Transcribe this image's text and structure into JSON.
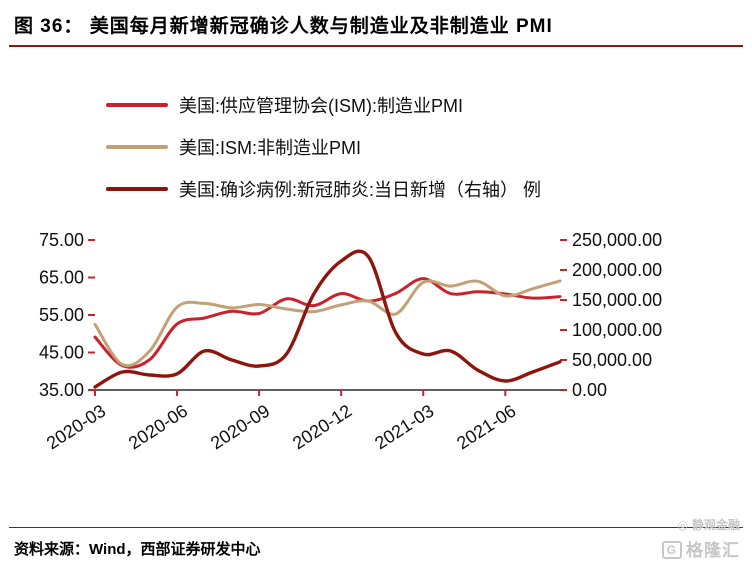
{
  "figure": {
    "title": "图 36：  美国每月新增新冠确诊人数与制造业及非制造业 PMI"
  },
  "chart_data": {
    "type": "line",
    "x": [
      "2020-03",
      "2020-04",
      "2020-05",
      "2020-06",
      "2020-07",
      "2020-08",
      "2020-09",
      "2020-10",
      "2020-11",
      "2020-12",
      "2021-01",
      "2021-02",
      "2021-03",
      "2021-04",
      "2021-05",
      "2021-06",
      "2021-07",
      "2021-08"
    ],
    "x_tick_labels": [
      "2020-03",
      "2020-06",
      "2020-09",
      "2020-12",
      "2021-03",
      "2021-06"
    ],
    "left_axis": {
      "min": 35,
      "max": 75,
      "tick_labels": [
        "75.00",
        "65.00",
        "55.00",
        "45.00",
        "35.00"
      ]
    },
    "right_axis": {
      "min": 0,
      "max": 250000,
      "tick_labels": [
        "250,000.00",
        "200,000.00",
        "150,000.00",
        "100,000.00",
        "50,000.00",
        "0.00"
      ]
    },
    "axis_tick_color": "#c0272d",
    "axis_line_color": "#000000",
    "grid": false,
    "legend_position": "top-left",
    "series": [
      {
        "name": "美国:供应管理协会(ISM):制造业PMI",
        "axis": "left",
        "color": "#c8232c",
        "values": [
          49.1,
          41.5,
          43.1,
          52.6,
          54.2,
          56.0,
          55.4,
          59.3,
          57.5,
          60.7,
          58.7,
          60.8,
          64.7,
          60.7,
          61.2,
          60.6,
          59.5,
          59.9
        ]
      },
      {
        "name": "美国:ISM:非制造业PMI",
        "axis": "left",
        "color": "#c2a176",
        "values": [
          52.5,
          41.8,
          45.4,
          57.1,
          58.1,
          56.9,
          57.8,
          56.6,
          55.9,
          57.7,
          58.7,
          55.3,
          63.7,
          62.7,
          64.0,
          60.1,
          62.0,
          64.1
        ]
      },
      {
        "name": "美国:确诊病例:新冠肺炎:当日新增（右轴） 例",
        "axis": "right",
        "color": "#8e150d",
        "values": [
          5000,
          30000,
          25000,
          27000,
          65000,
          50000,
          40000,
          60000,
          160000,
          215000,
          222000,
          95000,
          60000,
          65000,
          33000,
          15000,
          30000,
          47000
        ]
      }
    ]
  },
  "footer": {
    "source_label": "资料来源：",
    "source_text": "Wind，西部证券研发中心"
  },
  "watermark": {
    "line1": "静观金融",
    "line2": "格隆汇",
    "line2_prefix": "G"
  },
  "theme": {
    "rule_color": "#8e1511"
  }
}
